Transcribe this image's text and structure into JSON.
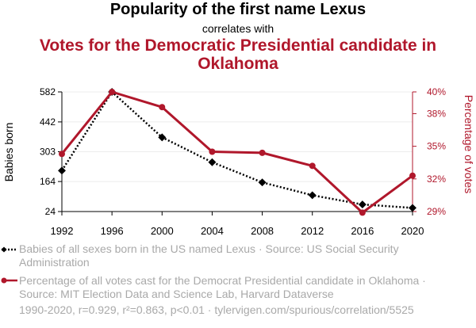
{
  "header": {
    "title": "Popularity of the first name Lexus",
    "connector": "correlates with",
    "subtitle": "Votes for the Democratic Presidential candidate in Oklahoma"
  },
  "chart_data": {
    "type": "line",
    "x": [
      1992,
      1996,
      2000,
      2004,
      2008,
      2012,
      2016,
      2020
    ],
    "x_ticks": [
      "1992",
      "1996",
      "2000",
      "2004",
      "2008",
      "2012",
      "2016",
      "2020"
    ],
    "series": [
      {
        "name": "Babies of all sexes born in the US named Lexus",
        "axis": "left",
        "color": "#000000",
        "style": "dotted",
        "marker": "diamond",
        "values": [
          215,
          582,
          370,
          254,
          160,
          100,
          57,
          41
        ]
      },
      {
        "name": "Percentage of all votes cast for the Democrat Presidential candidate in Oklahoma",
        "axis": "right",
        "color": "#b0172b",
        "style": "solid",
        "marker": "circle",
        "values": [
          34.3,
          40.0,
          38.6,
          34.5,
          34.4,
          33.2,
          28.9,
          32.3
        ]
      }
    ],
    "y_left": {
      "label": "Babies born",
      "range": [
        24,
        582
      ],
      "ticks": [
        24,
        164,
        303,
        442,
        582
      ],
      "tick_labels": [
        "24",
        "164",
        "303",
        "442",
        "582"
      ]
    },
    "y_right": {
      "label": "Percentage of votes",
      "range": [
        29,
        40
      ],
      "ticks": [
        29,
        32,
        35,
        38,
        40
      ],
      "tick_labels": [
        "29%",
        "32%",
        "35%",
        "38%",
        "40%"
      ]
    },
    "grid": "horizontal"
  },
  "legend": {
    "series1": "Babies of all sexes born in the US named Lexus · Source: US Social Security Administration",
    "series2": "Percentage of all votes cast for the Democrat Presidential candidate in Oklahoma · Source: MIT Election Data and Science Lab, Harvard Dataverse"
  },
  "footer": "1990-2020, r=0.929, r²=0.863, p<0.01 · tylervigen.com/spurious/correlation/5525"
}
